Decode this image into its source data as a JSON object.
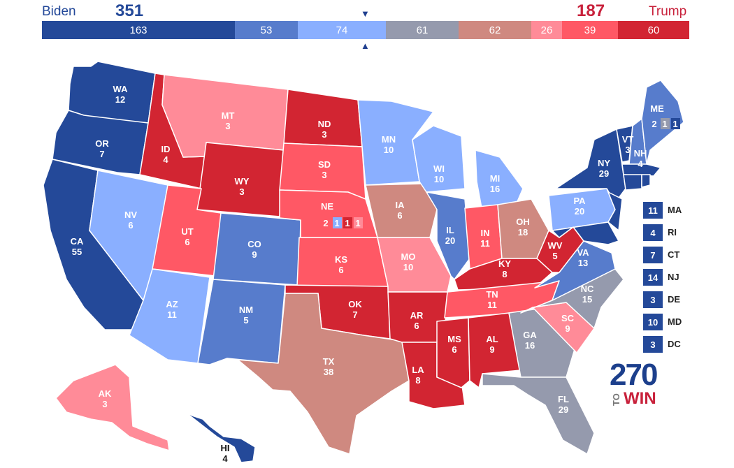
{
  "header": {
    "dem_name": "Biden",
    "dem_total": "351",
    "rep_name": "Trump",
    "rep_total": "187"
  },
  "bar_segments": [
    {
      "value": "163",
      "color": "#244999"
    },
    {
      "value": "53",
      "color": "#577ccc"
    },
    {
      "value": "74",
      "color": "#8aafff"
    },
    {
      "value": "61",
      "color": "#959aad"
    },
    {
      "value": "62",
      "color": "#cf8980"
    },
    {
      "value": "26",
      "color": "#ff8b98"
    },
    {
      "value": "39",
      "color": "#ff5865"
    },
    {
      "value": "60",
      "color": "#d22532"
    }
  ],
  "colors": {
    "safe_d": "#244999",
    "likely_d": "#577ccc",
    "lean_d": "#8aafff",
    "tossup": "#959aad",
    "tilt_r": "#cf8980",
    "lean_r": "#ff8b98",
    "likely_r": "#ff5865",
    "safe_r": "#d22532"
  },
  "states": {
    "WA": {
      "abbr": "WA",
      "ev": "12"
    },
    "OR": {
      "abbr": "OR",
      "ev": "7"
    },
    "CA": {
      "abbr": "CA",
      "ev": "55"
    },
    "ID": {
      "abbr": "ID",
      "ev": "4"
    },
    "NV": {
      "abbr": "NV",
      "ev": "6"
    },
    "MT": {
      "abbr": "MT",
      "ev": "3"
    },
    "WY": {
      "abbr": "WY",
      "ev": "3"
    },
    "UT": {
      "abbr": "UT",
      "ev": "6"
    },
    "AZ": {
      "abbr": "AZ",
      "ev": "11"
    },
    "CO": {
      "abbr": "CO",
      "ev": "9"
    },
    "NM": {
      "abbr": "NM",
      "ev": "5"
    },
    "ND": {
      "abbr": "ND",
      "ev": "3"
    },
    "SD": {
      "abbr": "SD",
      "ev": "3"
    },
    "NE": {
      "abbr": "NE",
      "ev": "2"
    },
    "KS": {
      "abbr": "KS",
      "ev": "6"
    },
    "OK": {
      "abbr": "OK",
      "ev": "7"
    },
    "TX": {
      "abbr": "TX",
      "ev": "38"
    },
    "MN": {
      "abbr": "MN",
      "ev": "10"
    },
    "IA": {
      "abbr": "IA",
      "ev": "6"
    },
    "MO": {
      "abbr": "MO",
      "ev": "10"
    },
    "AR": {
      "abbr": "AR",
      "ev": "6"
    },
    "LA": {
      "abbr": "LA",
      "ev": "8"
    },
    "WI": {
      "abbr": "WI",
      "ev": "10"
    },
    "IL": {
      "abbr": "IL",
      "ev": "20"
    },
    "MI": {
      "abbr": "MI",
      "ev": "16"
    },
    "IN": {
      "abbr": "IN",
      "ev": "11"
    },
    "OH": {
      "abbr": "OH",
      "ev": "18"
    },
    "KY": {
      "abbr": "KY",
      "ev": "8"
    },
    "TN": {
      "abbr": "TN",
      "ev": "11"
    },
    "MS": {
      "abbr": "MS",
      "ev": "6"
    },
    "AL": {
      "abbr": "AL",
      "ev": "9"
    },
    "GA": {
      "abbr": "GA",
      "ev": "16"
    },
    "FL": {
      "abbr": "FL",
      "ev": "29"
    },
    "SC": {
      "abbr": "SC",
      "ev": "9"
    },
    "NC": {
      "abbr": "NC",
      "ev": "15"
    },
    "VA": {
      "abbr": "VA",
      "ev": "13"
    },
    "WV": {
      "abbr": "WV",
      "ev": "5"
    },
    "PA": {
      "abbr": "PA",
      "ev": "20"
    },
    "NY": {
      "abbr": "NY",
      "ev": "29"
    },
    "VT": {
      "abbr": "VT",
      "ev": "3"
    },
    "NH": {
      "abbr": "NH",
      "ev": "4"
    },
    "ME": {
      "abbr": "ME",
      "ev": "2"
    },
    "AK": {
      "abbr": "AK",
      "ev": "3"
    },
    "HI": {
      "abbr": "HI",
      "ev": "4"
    }
  },
  "ne_districts": [
    "1",
    "1",
    "1"
  ],
  "me_districts": [
    "1",
    "1"
  ],
  "small_states": [
    {
      "abbr": "MA",
      "ev": "11"
    },
    {
      "abbr": "RI",
      "ev": "4"
    },
    {
      "abbr": "CT",
      "ev": "7"
    },
    {
      "abbr": "NJ",
      "ev": "14"
    },
    {
      "abbr": "DE",
      "ev": "3"
    },
    {
      "abbr": "MD",
      "ev": "10"
    },
    {
      "abbr": "DC",
      "ev": "3"
    }
  ],
  "logo": {
    "number": "270",
    "to": "TO",
    "win": "WIN"
  }
}
